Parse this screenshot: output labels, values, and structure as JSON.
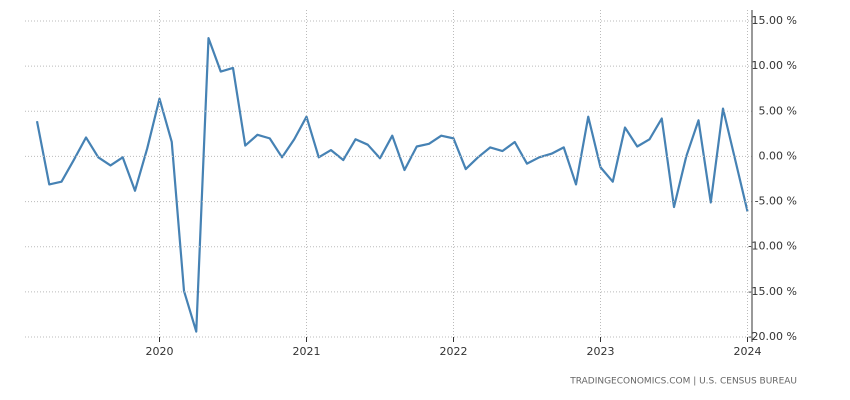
{
  "chart_data": {
    "type": "line",
    "source": "TRADINGECONOMICS.COM  |  U.S. CENSUS BUREAU",
    "categories": [
      null,
      null,
      null,
      null,
      null,
      null,
      null,
      null,
      null,
      null,
      "2020",
      null,
      null,
      null,
      null,
      null,
      null,
      null,
      null,
      null,
      null,
      null,
      "2021",
      null,
      null,
      null,
      null,
      null,
      null,
      null,
      null,
      null,
      null,
      null,
      "2022",
      null,
      null,
      null,
      null,
      null,
      null,
      null,
      null,
      null,
      null,
      null,
      "2023",
      null,
      null,
      null,
      null,
      null,
      null,
      null,
      null,
      null,
      null,
      null,
      "2024"
    ],
    "series": [
      {
        "color": "#4682b4",
        "values": [
          3.9,
          -3.1,
          -2.8,
          -0.4,
          2.1,
          -0.1,
          -1.0,
          -0.1,
          -3.8,
          0.9,
          6.4,
          1.6,
          -14.9,
          -19.4,
          13.1,
          9.4,
          9.8,
          1.2,
          2.4,
          2.0,
          -0.1,
          1.9,
          4.4,
          -0.1,
          0.7,
          -0.4,
          1.9,
          1.3,
          -0.2,
          2.3,
          -1.5,
          1.1,
          1.4,
          2.3,
          2.0,
          -1.4,
          -0.1,
          1.0,
          0.6,
          1.6,
          -0.8,
          -0.1,
          0.3,
          1.0,
          -3.1,
          4.4,
          -1.2,
          -2.8,
          3.2,
          1.1,
          1.9,
          4.2,
          -5.6,
          0.0,
          4.0,
          -5.1,
          5.3,
          -0.4,
          -6.1
        ]
      }
    ],
    "ylim": [
      -20,
      15
    ],
    "yticks": [
      {
        "value": -20,
        "label": "-20.00 %"
      },
      {
        "value": -15,
        "label": "-15.00 %"
      },
      {
        "value": -10,
        "label": "-10.00 %"
      },
      {
        "value": -5,
        "label": "-5.00 %"
      },
      {
        "value": 0,
        "label": "0.00 %"
      },
      {
        "value": 5,
        "label": "5.00 %"
      },
      {
        "value": 10,
        "label": "10.00 %"
      },
      {
        "value": 15,
        "label": "15.00 %"
      }
    ],
    "grid": true
  }
}
